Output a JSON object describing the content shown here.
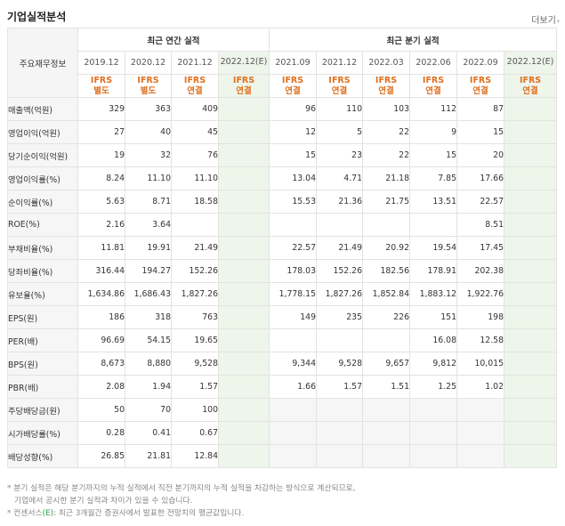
{
  "header": {
    "title": "기업실적분석",
    "more": "더보기"
  },
  "table": {
    "corner_label": "주요재무정보",
    "annual_group": "최근 연간 실적",
    "quarter_group": "최근 분기 실적",
    "annual_periods": [
      "2019.12",
      "2020.12",
      "2021.12",
      "2022.12(E)"
    ],
    "quarter_periods": [
      "2021.09",
      "2021.12",
      "2022.03",
      "2022.06",
      "2022.09",
      "2022.12(E)"
    ],
    "ifrs_top": "IFRS",
    "ifrs_annual": [
      "별도",
      "별도",
      "연결",
      "연결"
    ],
    "ifrs_quarter": [
      "연결",
      "연결",
      "연결",
      "연결",
      "연결",
      "연결"
    ],
    "rows": [
      {
        "label": "매출액(억원)",
        "values": [
          "329",
          "363",
          "409",
          "",
          "96",
          "110",
          "103",
          "112",
          "87",
          ""
        ]
      },
      {
        "label": "영업이익(억원)",
        "values": [
          "27",
          "40",
          "45",
          "",
          "12",
          "5",
          "22",
          "9",
          "15",
          ""
        ]
      },
      {
        "label": "당기순이익(억원)",
        "values": [
          "19",
          "32",
          "76",
          "",
          "15",
          "23",
          "22",
          "15",
          "20",
          ""
        ]
      },
      {
        "label": "영업이익률(%)",
        "values": [
          "8.24",
          "11.10",
          "11.10",
          "",
          "13.04",
          "4.71",
          "21.18",
          "7.85",
          "17.66",
          ""
        ]
      },
      {
        "label": "순이익률(%)",
        "values": [
          "5.63",
          "8.71",
          "18.58",
          "",
          "15.53",
          "21.36",
          "21.75",
          "13.51",
          "22.57",
          ""
        ]
      },
      {
        "label": "ROE(%)",
        "values": [
          "2.16",
          "3.64",
          "",
          "",
          "",
          "",
          "",
          "",
          "8.51",
          ""
        ]
      },
      {
        "label": "부채비율(%)",
        "values": [
          "11.81",
          "19.91",
          "21.49",
          "",
          "22.57",
          "21.49",
          "20.92",
          "19.54",
          "17.45",
          ""
        ]
      },
      {
        "label": "당좌비율(%)",
        "values": [
          "316.44",
          "194.27",
          "152.26",
          "",
          "178.03",
          "152.26",
          "182.56",
          "178.91",
          "202.38",
          ""
        ]
      },
      {
        "label": "유보율(%)",
        "values": [
          "1,634.86",
          "1,686.43",
          "1,827.26",
          "",
          "1,778.15",
          "1,827.26",
          "1,852.84",
          "1,883.12",
          "1,922.76",
          ""
        ]
      },
      {
        "label": "EPS(원)",
        "values": [
          "186",
          "318",
          "763",
          "",
          "149",
          "235",
          "226",
          "151",
          "198",
          ""
        ]
      },
      {
        "label": "PER(배)",
        "values": [
          "96.69",
          "54.15",
          "19.65",
          "",
          "",
          "",
          "",
          "16.08",
          "12.58",
          ""
        ]
      },
      {
        "label": "BPS(원)",
        "values": [
          "8,673",
          "8,880",
          "9,528",
          "",
          "9,344",
          "9,528",
          "9,657",
          "9,812",
          "10,015",
          ""
        ]
      },
      {
        "label": "PBR(배)",
        "values": [
          "2.08",
          "1.94",
          "1.57",
          "",
          "1.66",
          "1.57",
          "1.51",
          "1.25",
          "1.02",
          ""
        ]
      },
      {
        "label": "주당배당금(원)",
        "values": [
          "50",
          "70",
          "100",
          "",
          "",
          "",
          "",
          "",
          "",
          ""
        ]
      },
      {
        "label": "시가배당률(%)",
        "values": [
          "0.28",
          "0.41",
          "0.67",
          "",
          "",
          "",
          "",
          "",
          "",
          ""
        ]
      },
      {
        "label": "배당성향(%)",
        "values": [
          "26.85",
          "21.81",
          "12.84",
          "",
          "",
          "",
          "",
          "",
          "",
          ""
        ]
      }
    ]
  },
  "notes": {
    "line1": "* 분기 실적은 해당 분기까지의 누적 실적에서 직전 분기까지의 누적 실적을 차감하는 방식으로 계산되므로,",
    "line2": "기업에서 공시한 분기 실적과 차이가 있을 수 있습니다.",
    "line3_prefix": "* 컨센서스",
    "line3_e": "(E)",
    "line3_suffix": ": 최근 3개월간 증권사에서 발표한 전망치의 평균값입니다."
  }
}
